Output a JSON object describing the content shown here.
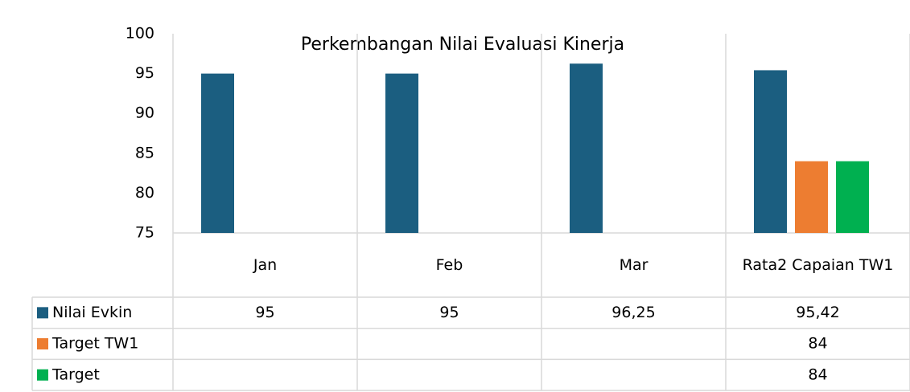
{
  "chart_data": {
    "type": "bar",
    "title": "Perkembangan Nilai Evaluasi Kinerja",
    "categories": [
      "Jan",
      "Feb",
      "Mar",
      "Rata2 Capaian TW1"
    ],
    "series": [
      {
        "name": "Nilai Evkin",
        "color": "#1b5e80",
        "values": [
          95,
          95,
          96.25,
          95.42
        ],
        "value_labels": [
          "95",
          "95",
          "96,25",
          "95,42"
        ]
      },
      {
        "name": "Target TW1",
        "color": "#ed7d31",
        "values": [
          null,
          null,
          null,
          84
        ]
      },
      {
        "name": "Target",
        "color": "#00b050",
        "values": [
          null,
          null,
          null,
          84
        ]
      }
    ],
    "ylim": [
      75,
      100
    ],
    "yticks": [
      75,
      80,
      85,
      90,
      95,
      100
    ],
    "grid": false,
    "data_table": true
  }
}
